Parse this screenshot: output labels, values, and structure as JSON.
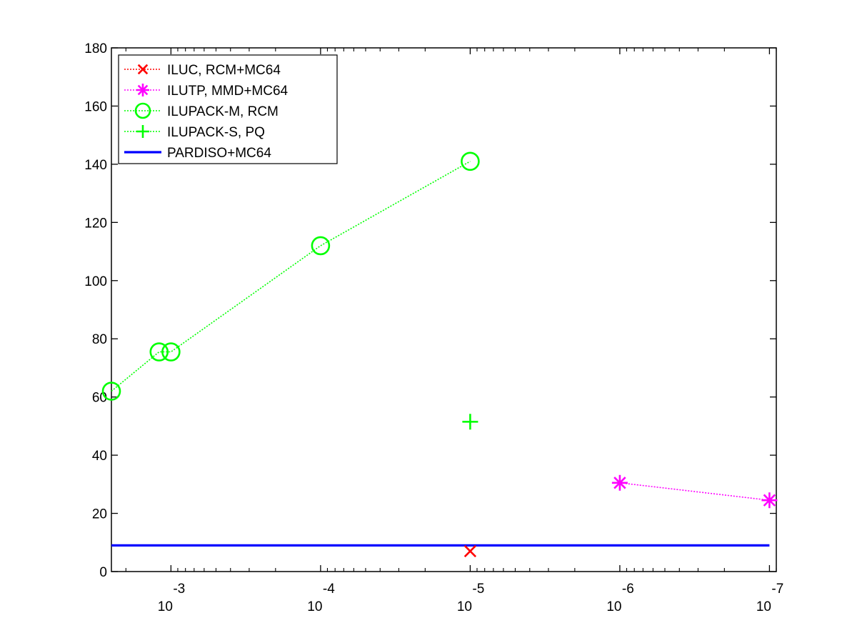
{
  "chart_data": {
    "type": "line",
    "title": "",
    "xlabel": "",
    "ylabel": "",
    "x_scale": "log",
    "x_reversed": true,
    "xlim": [
      0.0025,
      9e-08
    ],
    "ylim": [
      0,
      180
    ],
    "grid": false,
    "legend_position": "top-left",
    "x_ticks": [
      {
        "base": "10",
        "exp": "-3",
        "value": 0.001
      },
      {
        "base": "10",
        "exp": "-4",
        "value": 0.0001
      },
      {
        "base": "10",
        "exp": "-5",
        "value": 1e-05
      },
      {
        "base": "10",
        "exp": "-6",
        "value": 1e-06
      },
      {
        "base": "10",
        "exp": "-7",
        "value": 1e-07
      }
    ],
    "y_ticks": [
      "0",
      "20",
      "40",
      "60",
      "80",
      "100",
      "120",
      "140",
      "160",
      "180"
    ],
    "series": [
      {
        "name": "ILUC, RCM+MC64",
        "color": "#ff0000",
        "marker": "x",
        "line": "dotted",
        "points": [
          [
            1e-05,
            7
          ]
        ]
      },
      {
        "name": "ILUTP, MMD+MC64",
        "color": "#ff00ff",
        "marker": "asterisk",
        "line": "dotted",
        "points": [
          [
            1e-06,
            30.5
          ],
          [
            1e-07,
            24.5
          ]
        ]
      },
      {
        "name": "ILUPACK-M, RCM",
        "color": "#00ff00",
        "marker": "circle",
        "line": "dotted",
        "points": [
          [
            0.0025,
            62
          ],
          [
            0.0025,
            62
          ],
          [
            0.0025,
            62
          ]
        ]
      },
      {
        "name": "ILUPACK-S, PQ",
        "color": "#00ff00",
        "marker": "plus",
        "line": "dotted",
        "points": [
          [
            1e-05,
            51.5
          ]
        ]
      },
      {
        "name": "PARDISO+MC64",
        "color": "#0000ff",
        "marker": "none",
        "line": "solid",
        "points": [
          [
            0.0025,
            9
          ],
          [
            1e-07,
            9
          ]
        ]
      }
    ]
  }
}
